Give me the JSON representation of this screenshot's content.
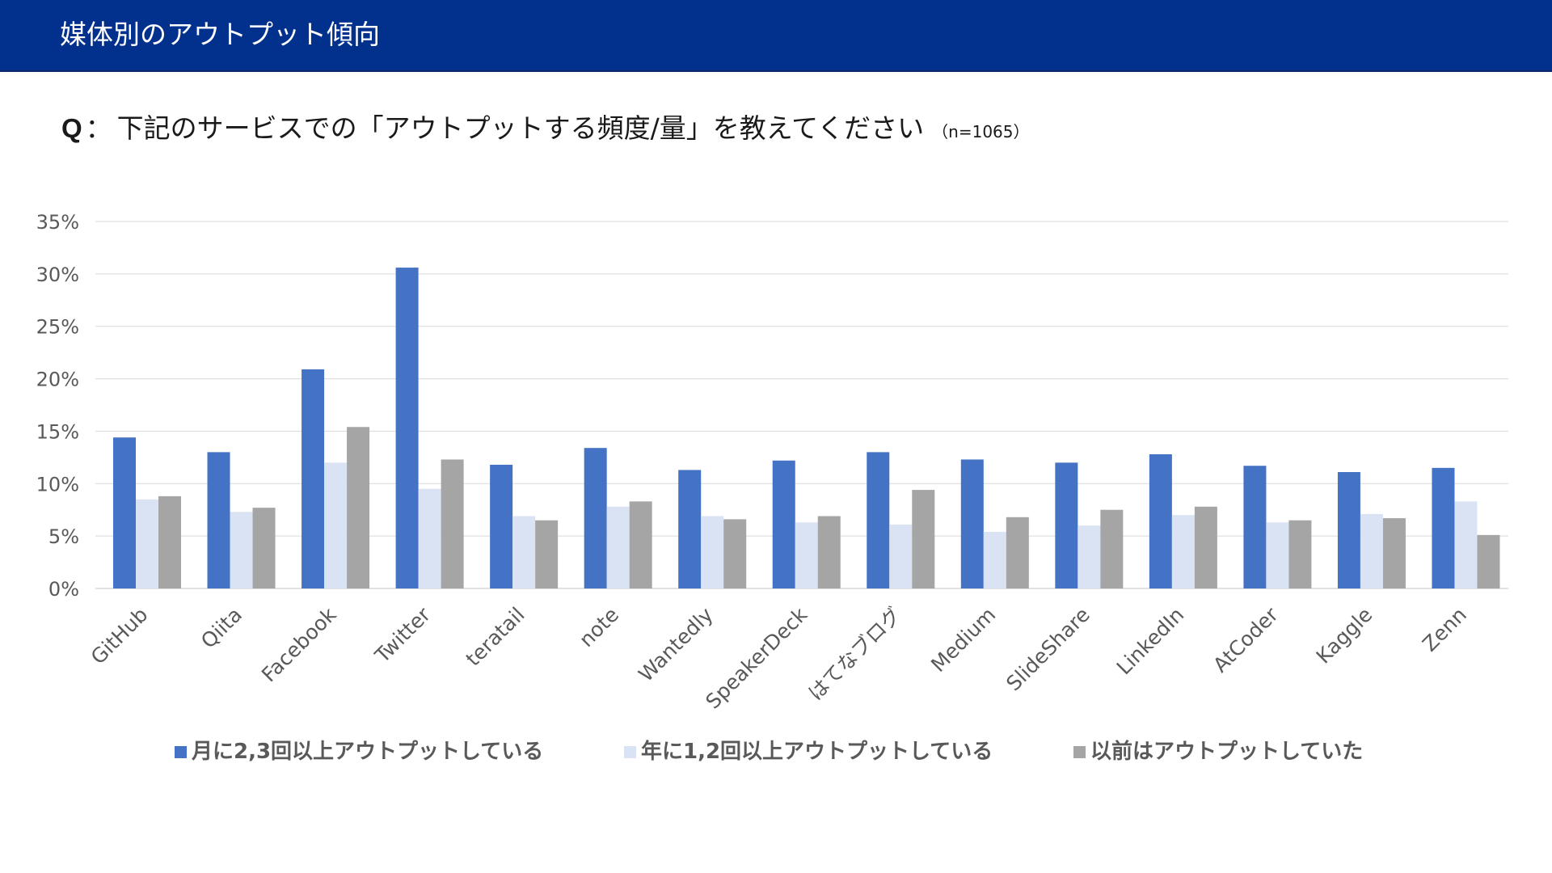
{
  "header": {
    "title": "媒体別のアウトプット傾向"
  },
  "question": {
    "prefix": "Q",
    "colon": "：",
    "text": "下記のサービスでの「アウトプットする頻度/量」を教えてください",
    "sample": "（n=1065）"
  },
  "colors": {
    "banner": "#02308d",
    "series_monthly": "#4472c4",
    "series_yearly": "#dae3f3",
    "series_past": "#a5a5a5",
    "gridline": "#d9d9d9",
    "axis_text": "#595959"
  },
  "chart_data": {
    "type": "bar",
    "title": "",
    "xlabel": "",
    "ylabel": "",
    "ylim": [
      0,
      35
    ],
    "yticks": [
      "0%",
      "5%",
      "10%",
      "15%",
      "20%",
      "25%",
      "30%",
      "35%"
    ],
    "grid": true,
    "legend_position": "bottom",
    "categories": [
      "GitHub",
      "Qiita",
      "Facebook",
      "Twitter",
      "teratail",
      "note",
      "Wantedly",
      "SpeakerDeck",
      "はてなブログ",
      "Medium",
      "SlideShare",
      "LinkedIn",
      "AtCoder",
      "Kaggle",
      "Zenn"
    ],
    "series": [
      {
        "name": "月に2,3回以上アウトプットしている",
        "values": [
          14.4,
          13.0,
          20.9,
          30.6,
          11.8,
          13.4,
          11.3,
          12.2,
          13.0,
          12.3,
          12.0,
          12.8,
          11.7,
          11.1,
          11.5
        ]
      },
      {
        "name": "年に1,2回以上アウトプットしている",
        "values": [
          8.5,
          7.3,
          12.0,
          9.5,
          6.9,
          7.8,
          6.9,
          6.3,
          6.1,
          5.4,
          6.0,
          7.0,
          6.3,
          7.1,
          8.3
        ]
      },
      {
        "name": "以前はアウトプットしていた",
        "values": [
          8.8,
          7.7,
          15.4,
          12.3,
          6.5,
          8.3,
          6.6,
          6.9,
          9.4,
          6.8,
          7.5,
          7.8,
          6.5,
          6.7,
          5.1
        ]
      }
    ]
  }
}
